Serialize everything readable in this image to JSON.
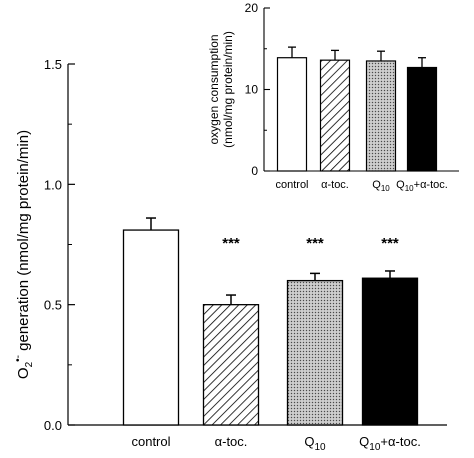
{
  "chart_data": [
    {
      "type": "bar",
      "ylabel": "O2•- generation (nmol/mg protein/min)",
      "ylabel_main": "O",
      "ylabel_sub": "2",
      "ylabel_sup": "•-",
      "ylabel_rest": " generation (nmol/mg protein/min)",
      "ylim": [
        0,
        1.5
      ],
      "yticks": [
        "0.0",
        "0.5",
        "1.0",
        "1.5"
      ],
      "categories": [
        "control",
        "α-toc.",
        "Q10",
        "Q10+α-toc."
      ],
      "category_labels": [
        {
          "main": "control",
          "sub": "",
          "rest": ""
        },
        {
          "main": "α-toc.",
          "sub": "",
          "rest": ""
        },
        {
          "main": "Q",
          "sub": "10",
          "rest": ""
        },
        {
          "main": "Q",
          "sub": "10",
          "rest": "+α-toc."
        }
      ],
      "values": [
        0.81,
        0.5,
        0.6,
        0.61
      ],
      "errors": [
        0.05,
        0.04,
        0.03,
        0.03
      ],
      "significance": [
        "",
        "***",
        "***",
        "***"
      ],
      "fills": [
        "white",
        "hatch",
        "dots",
        "black"
      ],
      "grid": false
    },
    {
      "type": "bar",
      "ylabel": "oxygen consumption (nmol/mg protein/min)",
      "ylabel_lines": [
        "oxygen consumption",
        "(nmol/mg protein/min)"
      ],
      "ylim": [
        0,
        20
      ],
      "yticks": [
        "0",
        "10",
        "20"
      ],
      "categories": [
        "control",
        "α-toc.",
        "Q10",
        "Q10+α-toc."
      ],
      "category_labels": [
        {
          "main": "control",
          "sub": "",
          "rest": ""
        },
        {
          "main": "α-toc.",
          "sub": "",
          "rest": ""
        },
        {
          "main": "Q",
          "sub": "10",
          "rest": ""
        },
        {
          "main": "Q",
          "sub": "10",
          "rest": "+α-toc."
        }
      ],
      "values": [
        13.9,
        13.6,
        13.5,
        12.7
      ],
      "errors": [
        1.3,
        1.2,
        1.2,
        1.2
      ],
      "fills": [
        "white",
        "hatch",
        "dots",
        "black"
      ],
      "grid": false
    }
  ]
}
